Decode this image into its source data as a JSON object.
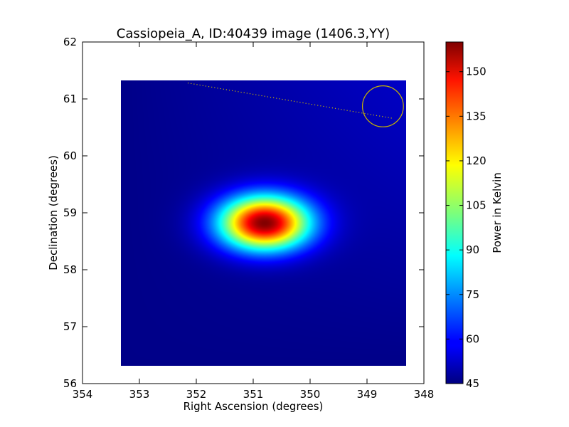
{
  "chart_data": {
    "type": "heatmap",
    "title": "Cassiopeia_A, ID:40439 image (1406.3,YY)",
    "xlabel": "Right Ascension (degrees)",
    "ylabel": "Declination (degrees)",
    "xlim": [
      354,
      348
    ],
    "ylim": [
      56,
      62
    ],
    "x_ticks": [
      354,
      353,
      352,
      351,
      350,
      349,
      348
    ],
    "y_ticks": [
      56,
      57,
      58,
      59,
      60,
      61,
      62
    ],
    "image_extent": {
      "ra": [
        353.32,
        348.31
      ],
      "dec": [
        56.31,
        61.33
      ]
    },
    "source": {
      "ra_center": 350.8,
      "dec_center": 58.82,
      "ra_sigma": 0.55,
      "dec_sigma": 0.33,
      "peak": 158
    },
    "background_level": 46,
    "gradient": {
      "ra_edge": 348.31,
      "dec_edge": 61.33,
      "extra": 7
    },
    "overlay": {
      "circle": {
        "ra": 348.72,
        "dec": 60.87,
        "radius_deg": 0.36,
        "color": "#c8b400"
      },
      "track": {
        "from": {
          "ra": 352.15,
          "dec": 61.28
        },
        "to": {
          "ra": 348.55,
          "dec": 60.66
        },
        "color": "#c8b400"
      }
    },
    "colorbar": {
      "label": "Power in Kelvin",
      "min": 45,
      "max": 160,
      "ticks": [
        45,
        60,
        75,
        90,
        105,
        120,
        135,
        150
      ],
      "colormap": "jet"
    },
    "grid": false
  }
}
